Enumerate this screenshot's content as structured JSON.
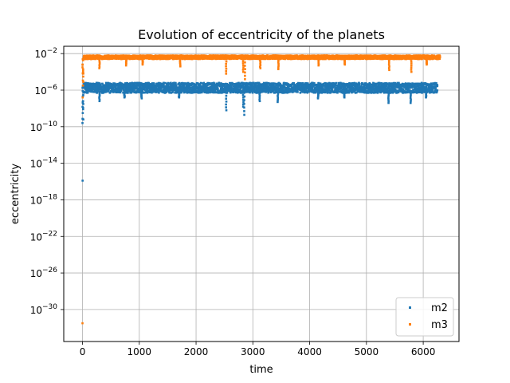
{
  "chart_data": {
    "type": "scatter",
    "title": "Evolution of eccentricity of the planets",
    "xlabel": "time",
    "ylabel": "eccentricity",
    "xlim": [
      -330,
      6630
    ],
    "ylim_log10": [
      -33.5,
      -1.2
    ],
    "yscale": "log",
    "grid": true,
    "legend_position": "lower-right",
    "x_ticks": [
      0,
      1000,
      2000,
      3000,
      4000,
      5000,
      6000
    ],
    "y_ticks": [
      {
        "exp": -30,
        "base": "10",
        "power": "−30"
      },
      {
        "exp": -26,
        "base": "10",
        "power": "−26"
      },
      {
        "exp": -22,
        "base": "10",
        "power": "−22"
      },
      {
        "exp": -18,
        "base": "10",
        "power": "−18"
      },
      {
        "exp": -14,
        "base": "10",
        "power": "−14"
      },
      {
        "exp": -10,
        "base": "10",
        "power": "−10"
      },
      {
        "exp": -6,
        "base": "10",
        "power": "−6"
      },
      {
        "exp": -2,
        "base": "10",
        "power": "−2"
      }
    ],
    "series": [
      {
        "name": "m2",
        "color": "#1f77b4",
        "band_log10": [
          -6.3,
          -5.2
        ],
        "outliers": [
          {
            "x": 2,
            "y_log10": -15.9
          },
          {
            "x": 0,
            "y_log10": -9.6
          },
          {
            "x": 5,
            "y_log10": -8.5
          },
          {
            "x": 10,
            "y_log10": -7.2
          }
        ],
        "dips": [
          {
            "x": 300,
            "y_log10": -7.2
          },
          {
            "x": 740,
            "y_log10": -6.8
          },
          {
            "x": 1040,
            "y_log10": -6.9
          },
          {
            "x": 1700,
            "y_log10": -6.8
          },
          {
            "x": 2530,
            "y_log10": -8.2
          },
          {
            "x": 2830,
            "y_log10": -7.8
          },
          {
            "x": 2850,
            "y_log10": -8.7
          },
          {
            "x": 3120,
            "y_log10": -7.2
          },
          {
            "x": 3440,
            "y_log10": -7.3
          },
          {
            "x": 4150,
            "y_log10": -6.9
          },
          {
            "x": 4610,
            "y_log10": -6.8
          },
          {
            "x": 5390,
            "y_log10": -7.4
          },
          {
            "x": 5780,
            "y_log10": -7.4
          },
          {
            "x": 6050,
            "y_log10": -6.8
          }
        ],
        "x_range": [
          20,
          6250
        ]
      },
      {
        "name": "m3",
        "color": "#ff7f0e",
        "band_log10": [
          -2.6,
          -2.2
        ],
        "outliers": [
          {
            "x": 0,
            "y_log10": -31.5
          },
          {
            "x": 3,
            "y_log10": -6.8
          },
          {
            "x": 8,
            "y_log10": -5.5
          },
          {
            "x": 12,
            "y_log10": -4.2
          }
        ],
        "dips": [
          {
            "x": 300,
            "y_log10": -3.6
          },
          {
            "x": 770,
            "y_log10": -3.3
          },
          {
            "x": 1060,
            "y_log10": -3.2
          },
          {
            "x": 1720,
            "y_log10": -3.4
          },
          {
            "x": 2530,
            "y_log10": -4.2
          },
          {
            "x": 2830,
            "y_log10": -4.0
          },
          {
            "x": 2860,
            "y_log10": -4.8
          },
          {
            "x": 3130,
            "y_log10": -3.6
          },
          {
            "x": 3450,
            "y_log10": -3.7
          },
          {
            "x": 4160,
            "y_log10": -3.3
          },
          {
            "x": 4620,
            "y_log10": -3.2
          },
          {
            "x": 5400,
            "y_log10": -3.8
          },
          {
            "x": 5790,
            "y_log10": -4.0
          },
          {
            "x": 6060,
            "y_log10": -3.2
          }
        ],
        "x_range": [
          20,
          6300
        ]
      }
    ]
  }
}
